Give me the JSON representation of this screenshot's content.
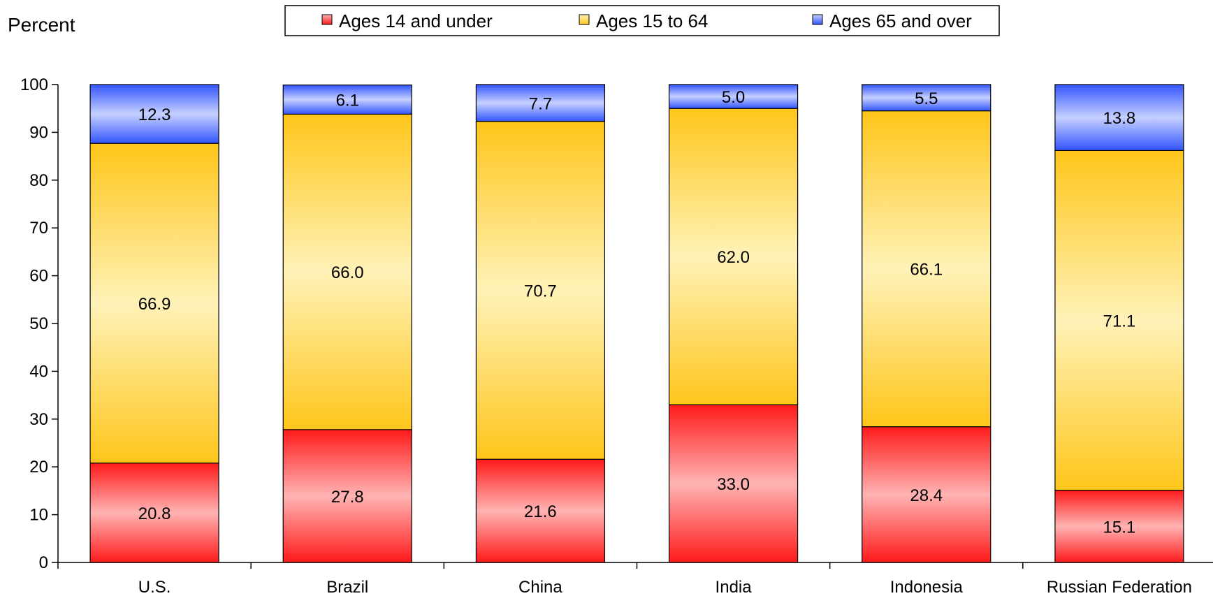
{
  "chart_data": {
    "type": "bar",
    "stacked": true,
    "ylabel": "Percent",
    "ylim": [
      0,
      100
    ],
    "yticks": [
      0,
      10,
      20,
      30,
      40,
      50,
      60,
      70,
      80,
      90,
      100
    ],
    "categories": [
      "U.S.",
      "Brazil",
      "China",
      "India",
      "Indonesia",
      "Russian Federation"
    ],
    "series": [
      {
        "name": "Ages 14 and under",
        "values": [
          20.8,
          27.8,
          21.6,
          33.0,
          28.4,
          15.1
        ],
        "labels": [
          "20.8",
          "27.8",
          "21.6",
          "33.0",
          "28.4",
          "15.1"
        ],
        "color_light": "#ffb3b3",
        "color_dark": "#ff1a1a"
      },
      {
        "name": "Ages 15 to 64",
        "values": [
          66.9,
          66.0,
          70.7,
          62.0,
          66.1,
          71.1
        ],
        "labels": [
          "66.9",
          "66.0",
          "70.7",
          "62.0",
          "66.1",
          "71.1"
        ],
        "color_light": "#fff2b8",
        "color_dark": "#ffc61a"
      },
      {
        "name": "Ages 65 and over",
        "values": [
          12.3,
          6.1,
          7.7,
          5.0,
          5.5,
          13.8
        ],
        "labels": [
          "12.3",
          "6.1",
          "7.7",
          "5.0",
          "5.5",
          "13.8"
        ],
        "color_light": "#c6d0ff",
        "color_dark": "#3355ff"
      }
    ],
    "legend": "top",
    "grid": false
  }
}
